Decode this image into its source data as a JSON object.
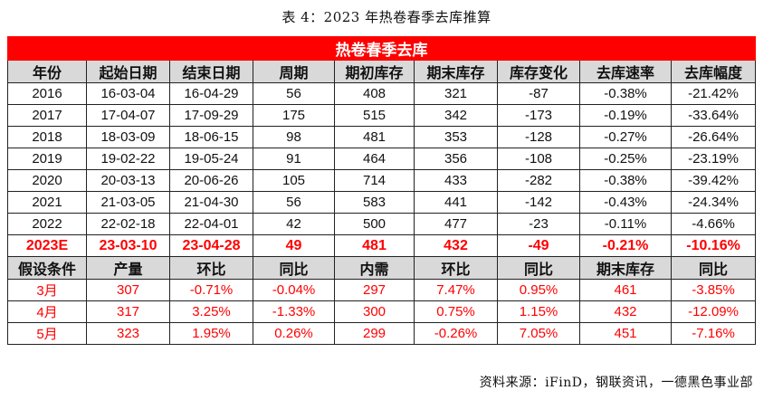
{
  "caption": "表 4：2023 年热卷春季去库推算",
  "table_title": "热卷春季去库",
  "history_headers": [
    "年份",
    "起始日期",
    "结束日期",
    "周期",
    "期初库存",
    "期末库存",
    "库存变化",
    "去库速率",
    "去库幅度"
  ],
  "history_rows": [
    [
      "2016",
      "16-03-04",
      "16-04-29",
      "56",
      "408",
      "321",
      "-87",
      "-0.38%",
      "-21.42%"
    ],
    [
      "2017",
      "17-04-07",
      "17-09-29",
      "175",
      "515",
      "342",
      "-173",
      "-0.19%",
      "-33.64%"
    ],
    [
      "2018",
      "18-03-09",
      "18-06-15",
      "98",
      "481",
      "353",
      "-128",
      "-0.27%",
      "-26.64%"
    ],
    [
      "2019",
      "19-02-22",
      "19-05-24",
      "91",
      "464",
      "356",
      "-108",
      "-0.25%",
      "-23.19%"
    ],
    [
      "2020",
      "20-03-13",
      "20-06-26",
      "105",
      "714",
      "433",
      "-282",
      "-0.38%",
      "-39.42%"
    ],
    [
      "2021",
      "21-03-05",
      "21-04-30",
      "56",
      "583",
      "441",
      "-142",
      "-0.43%",
      "-24.34%"
    ],
    [
      "2022",
      "22-02-18",
      "22-04-01",
      "42",
      "500",
      "477",
      "-23",
      "-0.11%",
      "-4.66%"
    ]
  ],
  "estimate_row": [
    "2023E",
    "23-03-10",
    "23-04-28",
    "49",
    "481",
    "432",
    "-49",
    "-0.21%",
    "-10.16%"
  ],
  "assumption_headers": [
    "假设条件",
    "产量",
    "环比",
    "同比",
    "内需",
    "环比",
    "同比",
    "期末库存",
    "同比"
  ],
  "assumption_rows": [
    [
      "3月",
      "307",
      "-0.71%",
      "-0.04%",
      "297",
      "7.47%",
      "0.95%",
      "461",
      "-3.85%"
    ],
    [
      "4月",
      "317",
      "3.25%",
      "-1.33%",
      "300",
      "0.75%",
      "1.15%",
      "432",
      "-12.09%"
    ],
    [
      "5月",
      "323",
      "1.95%",
      "0.26%",
      "299",
      "-0.26%",
      "7.05%",
      "451",
      "-7.16%"
    ]
  ],
  "source": "资料来源：iFinD，钢联资讯，一德黑色事业部",
  "colors": {
    "banner": "#ff0000",
    "header_bg": "#d9d9d9",
    "highlight_text": "#ff0000"
  }
}
